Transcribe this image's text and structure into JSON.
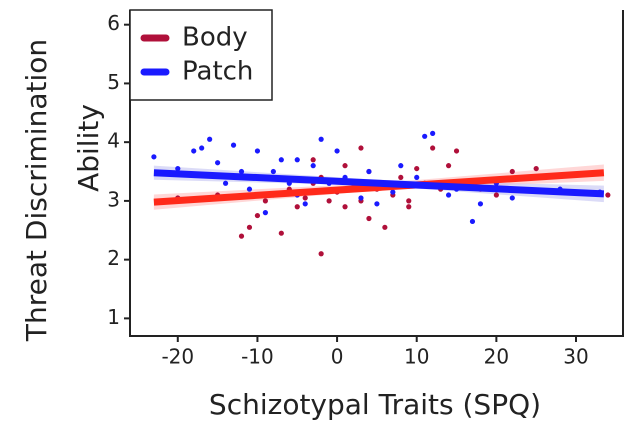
{
  "chart_data": {
    "type": "scatter",
    "xlabel": "Schizotypal Traits (SPQ)",
    "ylabel": [
      "Threat Discrimination",
      "Ability"
    ],
    "xlim": [
      -26,
      35.9
    ],
    "ylim": [
      0.7,
      6.25
    ],
    "xticks": [
      -20,
      -10,
      0,
      10,
      20,
      30
    ],
    "yticks": [
      1,
      2,
      3,
      4,
      5,
      6
    ],
    "legend": "upper left",
    "series": [
      {
        "name": "Body",
        "color": "#b0103a",
        "fit_color": "#ff2a1a",
        "band_color": "#ffb0b0",
        "x": [
          -12,
          -11,
          -10,
          -9,
          -8,
          -7,
          -6,
          -5,
          -4,
          -3,
          -2,
          -2,
          -1,
          0,
          1,
          1,
          2,
          3,
          4,
          4,
          5,
          6,
          7,
          8,
          9,
          10,
          11,
          12,
          13,
          14,
          15,
          16,
          18,
          20,
          22,
          25,
          -15,
          -20,
          -3,
          3,
          9,
          34
        ],
        "values": [
          2.4,
          2.55,
          2.75,
          3.0,
          3.1,
          2.45,
          3.2,
          2.9,
          3.05,
          3.3,
          2.1,
          3.4,
          3.0,
          3.15,
          3.6,
          2.9,
          3.3,
          3.0,
          3.5,
          2.7,
          3.2,
          2.55,
          3.1,
          3.4,
          3.0,
          3.55,
          3.3,
          3.9,
          3.2,
          3.6,
          3.85,
          3.3,
          3.2,
          3.1,
          3.5,
          3.55,
          3.1,
          3.05,
          3.7,
          3.9,
          2.9,
          3.1
        ],
        "fit_x": [
          -23,
          33.5
        ],
        "fit_y": [
          2.98,
          3.48
        ],
        "band_x": [
          -23,
          5,
          33.5
        ],
        "band_lower": [
          2.85,
          3.18,
          3.34
        ],
        "band_upper": [
          3.11,
          3.3,
          3.62
        ]
      },
      {
        "name": "Patch",
        "color": "#1a1aff",
        "fit_color": "#1a1aff",
        "band_color": "#b8b8f0",
        "x": [
          -23,
          -21,
          -20,
          -18,
          -17,
          -16,
          -15,
          -14,
          -13,
          -12,
          -11,
          -10,
          -9,
          -8,
          -7,
          -6,
          -5,
          -4,
          -3,
          -2,
          -1,
          0,
          1,
          2,
          3,
          4,
          5,
          6,
          7,
          8,
          9,
          10,
          11,
          12,
          13,
          14,
          15,
          17,
          18,
          20,
          22,
          28,
          33,
          -5
        ],
        "values": [
          3.75,
          3.0,
          3.55,
          3.85,
          3.9,
          4.05,
          3.65,
          3.3,
          3.95,
          3.5,
          3.2,
          3.85,
          2.8,
          3.5,
          3.7,
          3.3,
          3.1,
          2.95,
          3.6,
          4.05,
          3.3,
          3.85,
          3.4,
          3.2,
          3.05,
          3.5,
          2.95,
          3.3,
          3.15,
          3.6,
          3.25,
          3.4,
          4.1,
          4.15,
          3.3,
          3.1,
          3.2,
          2.65,
          2.95,
          3.3,
          3.05,
          3.2,
          3.15,
          3.7
        ],
        "fit_x": [
          -23,
          33.5
        ],
        "fit_y": [
          3.48,
          3.12
        ],
        "band_x": [
          -23,
          5,
          33.5
        ],
        "band_lower": [
          3.36,
          3.26,
          2.98
        ],
        "band_upper": [
          3.6,
          3.36,
          3.26
        ]
      }
    ]
  }
}
